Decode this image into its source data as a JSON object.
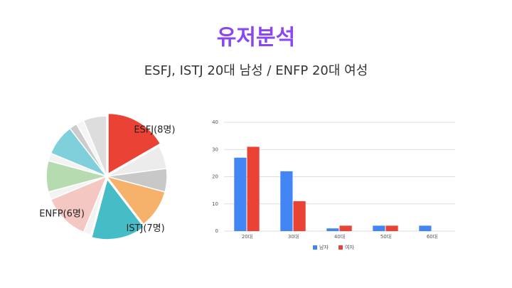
{
  "header": {
    "title": "유저분석",
    "subtitle": "ESFJ, ISTJ 20대 남성 / ENFP 20대 여성"
  },
  "chart_data": [
    {
      "type": "pie",
      "categories": [
        "ESFJ(8명)",
        null,
        null,
        null,
        "ISTJ(7명)",
        null,
        "ENFP(6명)",
        null,
        null,
        null,
        null,
        null,
        null,
        null
      ],
      "values": [
        8,
        3,
        3,
        5,
        7,
        1,
        6,
        1,
        4,
        1,
        4,
        1,
        1,
        3
      ],
      "colors": [
        "#ea4335",
        "#ececec",
        "#c8c8c8",
        "#f6b26b",
        "#46bdc6",
        "#f3f3f3",
        "#f4c7c3",
        "#f3f3f3",
        "#b7dbb0",
        "#f3f3f3",
        "#7fd0da",
        "#cccccc",
        "#f5f5f5",
        "#dddddd"
      ]
    },
    {
      "type": "bar",
      "categories": [
        "20대",
        "30대",
        "40대",
        "50대",
        "60대"
      ],
      "series": [
        {
          "name": "남자",
          "color": "#4285f4",
          "values": [
            27,
            22,
            1,
            2,
            2
          ]
        },
        {
          "name": "여자",
          "color": "#ea4335",
          "values": [
            31,
            11,
            2,
            2,
            0
          ]
        }
      ],
      "ylim": [
        0,
        40
      ],
      "yticks": [
        0,
        10,
        20,
        30,
        40
      ],
      "grid": true
    }
  ]
}
